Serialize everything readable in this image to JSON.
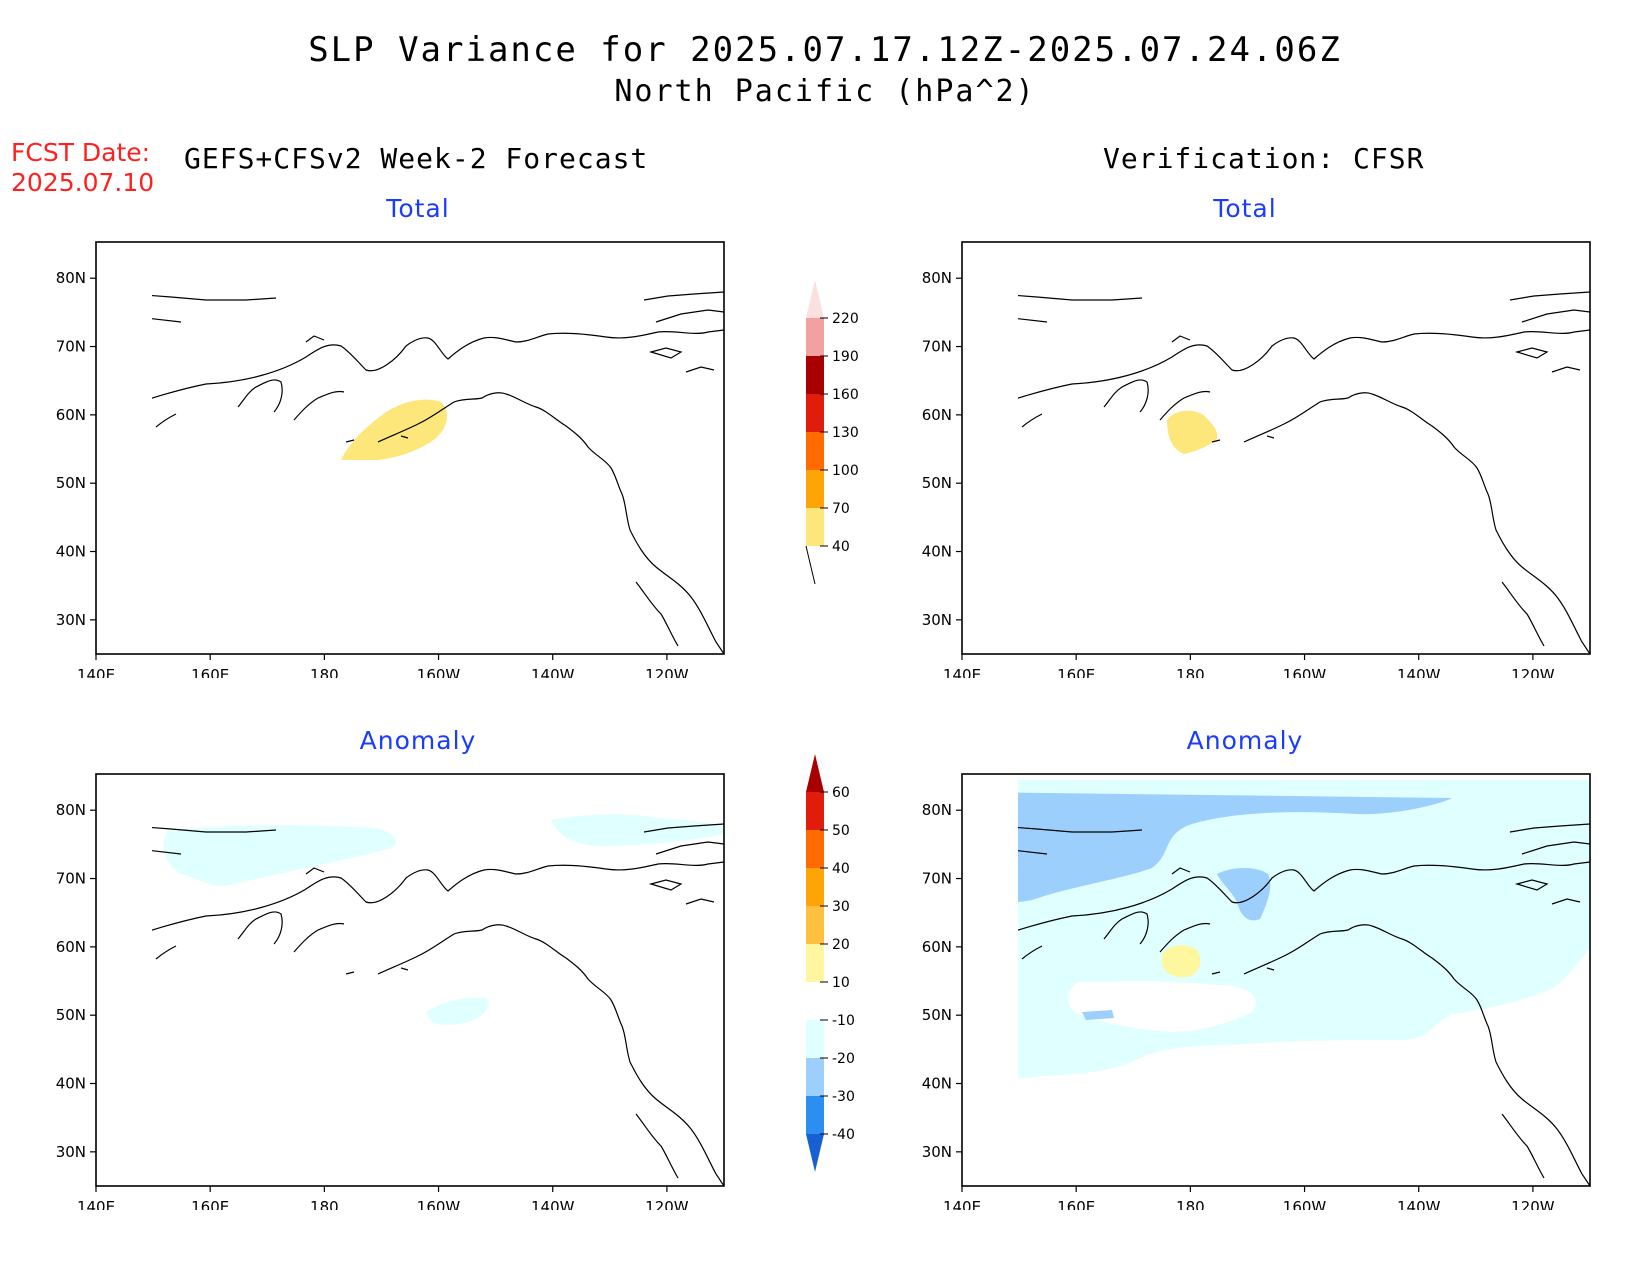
{
  "title": {
    "line1": "SLP Variance for 2025.07.17.12Z-2025.07.24.06Z",
    "line2": "North Pacific (hPa^2)"
  },
  "forecast_date": {
    "label": "FCST Date:",
    "value": "2025.07.10"
  },
  "left_heading": "GEFS+CFSv2 Week-2 Forecast",
  "right_heading": "Verification: CFSR",
  "panels": [
    {
      "id": "fcst-total",
      "title": "Total"
    },
    {
      "id": "verif-total",
      "title": "Total"
    },
    {
      "id": "fcst-anomaly",
      "title": "Anomaly"
    },
    {
      "id": "verif-anomaly",
      "title": "Anomaly"
    }
  ],
  "axes": {
    "lon_labels": [
      "140E",
      "160E",
      "180",
      "160W",
      "140W",
      "120W"
    ],
    "lat_labels": [
      "80N",
      "70N",
      "60N",
      "50N",
      "40N",
      "30N"
    ]
  },
  "colorbars": {
    "total": {
      "levels": [
        "40",
        "70",
        "100",
        "130",
        "160",
        "190",
        "220"
      ],
      "colors": [
        "#fde67a",
        "#ffa406",
        "#ff6b00",
        "#e01d0d",
        "#a80000",
        "#f2a0a0",
        "#fbe0e0"
      ]
    },
    "anomaly": {
      "levels": [
        "-40",
        "-30",
        "-20",
        "-10",
        "10",
        "20",
        "30",
        "40",
        "50",
        "60"
      ],
      "colors": [
        "#1760d4",
        "#2b8ef0",
        "#9ccffb",
        "#e0ffff",
        "#ffffff",
        "#fff6a0",
        "#ffc040",
        "#ffa406",
        "#ff6b00",
        "#e01d0d",
        "#a80000"
      ]
    }
  }
}
